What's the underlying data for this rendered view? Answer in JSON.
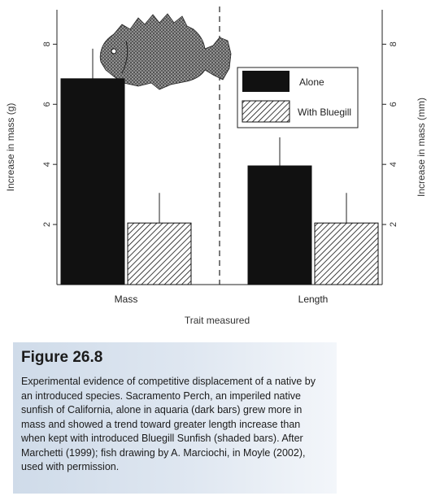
{
  "chart_data": {
    "type": "bar",
    "categories": [
      "Mass",
      "Length"
    ],
    "series": [
      {
        "name": "Alone",
        "values": [
          6.85,
          3.95
        ],
        "error": [
          1.0,
          0.95
        ],
        "color": "#111111",
        "fill": "solid"
      },
      {
        "name": "With Bluegill",
        "values": [
          2.05,
          2.05
        ],
        "error": [
          1.0,
          1.0
        ],
        "color": "#111111",
        "fill": "hatched"
      }
    ],
    "xlabel": "Trait measured",
    "ylabel_left": "Increase in mass (g)",
    "ylabel_right": "Increase in mass (mm)",
    "ylim": [
      0,
      9.2
    ],
    "yticks": [
      2,
      4,
      6,
      8
    ],
    "grid": false,
    "legend_position": "top-right",
    "divider": "dashed vertical line between categories",
    "illustration": "fish drawing"
  },
  "caption": {
    "title": "Figure 26.8",
    "lines": [
      "Experimental evidence of competitive displacement of a native by",
      "an introduced species. Sacramento Perch, an imperiled native",
      "sunfish of California, alone in aquaria (dark bars) grew more in",
      "mass and showed a trend toward greater length increase than",
      "when kept with introduced Bluegill Sunfish (shaded bars). After",
      "Marchetti (1999); fish drawing by A. Marciochi, in Moyle (2002),",
      "used with permission."
    ]
  }
}
